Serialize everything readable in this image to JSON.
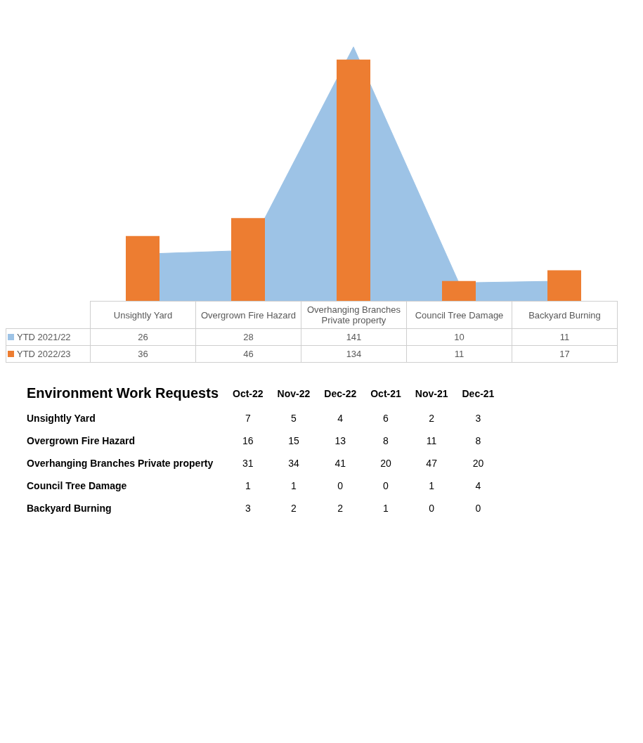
{
  "chart_data": [
    {
      "type": "bar",
      "categories": [
        "Unsightly Yard",
        "Overgrown Fire Hazard",
        "Overhanging Branches Private property",
        "Council Tree Damage",
        "Backyard Burning"
      ],
      "series": [
        {
          "name": "YTD 2021/22",
          "type": "area",
          "color": "#9dc3e6",
          "values": [
            26,
            28,
            141,
            10,
            11
          ]
        },
        {
          "name": "YTD 2022/23",
          "type": "bar",
          "color": "#ed7d31",
          "values": [
            36,
            46,
            134,
            11,
            17
          ]
        }
      ],
      "data_labels": true,
      "legend": "bottom",
      "grid": false
    },
    {
      "type": "heatmap",
      "title": "Environment Work Requests",
      "categories": [
        "Oct-22",
        "Nov-22",
        "Dec-22",
        "Oct-21",
        "Nov-21",
        "Dec-21"
      ],
      "y_categories": [
        "Unsightly Yard",
        "Overgrown Fire Hazard",
        "Overhanging Branches Private property",
        "Council Tree Damage",
        "Backyard Burning"
      ],
      "cells": [
        [
          7,
          5,
          4,
          6,
          2,
          3
        ],
        [
          16,
          15,
          13,
          8,
          11,
          8
        ],
        [
          31,
          34,
          41,
          20,
          47,
          20
        ],
        [
          1,
          1,
          0,
          0,
          1,
          4
        ],
        [
          3,
          2,
          2,
          1,
          0,
          0
        ]
      ],
      "data_labels": true
    }
  ]
}
